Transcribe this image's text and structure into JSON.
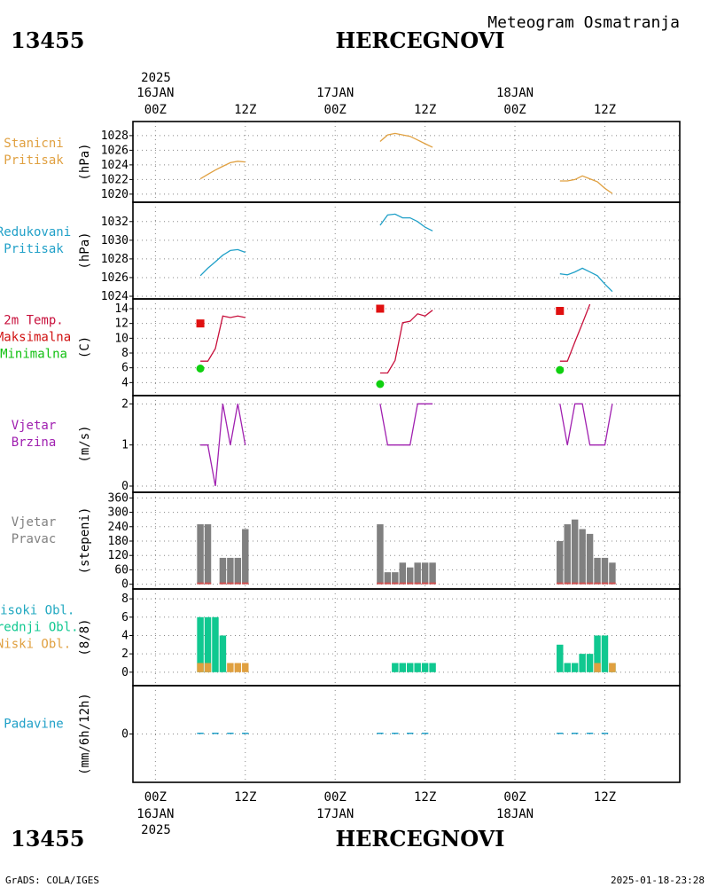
{
  "header": {
    "station_id": "13455",
    "station_name": "HERCEGNOVI",
    "product": "Meteogram Osmatranja"
  },
  "footer": {
    "station_id": "13455",
    "station_name": "HERCEGNOVI",
    "credit": "GrADS: COLA/IGES",
    "timestamp": "2025-01-18-23:28"
  },
  "time_axis": {
    "top_year": "2025",
    "bottom_year": "2025",
    "ticks": [
      {
        "label": "00Z",
        "date": "16JAN",
        "hour": 0
      },
      {
        "label": "12Z",
        "date": "",
        "hour": 12
      },
      {
        "label": "00Z",
        "date": "17JAN",
        "hour": 24
      },
      {
        "label": "12Z",
        "date": "",
        "hour": 36
      },
      {
        "label": "00Z",
        "date": "18JAN",
        "hour": 48
      },
      {
        "label": "12Z",
        "date": "",
        "hour": 60
      }
    ],
    "range_hours": [
      -3,
      70
    ]
  },
  "chart_data": [
    {
      "type": "line",
      "panel": "station_pressure",
      "label_lines": [
        "Stanicni",
        "Pritisak"
      ],
      "ylabel": "(hPa)",
      "ylim": [
        1019.5,
        1029.2
      ],
      "yticks": [
        1020,
        1022,
        1024,
        1026,
        1028
      ],
      "color": "#e0a040",
      "segments": [
        [
          [
            6,
            1022.1
          ],
          [
            7,
            1022.7
          ],
          [
            8,
            1023.3
          ],
          [
            9,
            1023.8
          ],
          [
            10,
            1024.3
          ],
          [
            11,
            1024.5
          ],
          [
            12,
            1024.4
          ]
        ],
        [
          [
            30,
            1027.2
          ],
          [
            31,
            1028.1
          ],
          [
            32,
            1028.3
          ],
          [
            33,
            1028.1
          ],
          [
            34,
            1027.9
          ],
          [
            35,
            1027.4
          ],
          [
            36,
            1026.9
          ],
          [
            37,
            1026.4
          ]
        ],
        [
          [
            54,
            1021.8
          ],
          [
            55,
            1021.8
          ],
          [
            56,
            1022.0
          ],
          [
            57,
            1022.5
          ],
          [
            58,
            1022.1
          ],
          [
            59,
            1021.7
          ],
          [
            60,
            1020.8
          ],
          [
            61,
            1020.1
          ]
        ]
      ]
    },
    {
      "type": "line",
      "panel": "reduced_pressure",
      "label_lines": [
        "Redukovani",
        "Pritisak"
      ],
      "ylabel": "(hPa)",
      "ylim": [
        1024,
        1033.5
      ],
      "yticks": [
        1024,
        1026,
        1028,
        1030,
        1032
      ],
      "color": "#20a0c8",
      "segments": [
        [
          [
            6,
            1026.2
          ],
          [
            7,
            1027.0
          ],
          [
            8,
            1027.7
          ],
          [
            9,
            1028.4
          ],
          [
            10,
            1028.9
          ],
          [
            11,
            1029.0
          ],
          [
            12,
            1028.7
          ]
        ],
        [
          [
            30,
            1031.6
          ],
          [
            31,
            1032.7
          ],
          [
            32,
            1032.8
          ],
          [
            33,
            1032.4
          ],
          [
            34,
            1032.4
          ],
          [
            35,
            1032.0
          ],
          [
            36,
            1031.4
          ],
          [
            37,
            1031.0
          ]
        ],
        [
          [
            54,
            1026.4
          ],
          [
            55,
            1026.3
          ],
          [
            56,
            1026.6
          ],
          [
            57,
            1027.0
          ],
          [
            58,
            1026.6
          ],
          [
            59,
            1026.2
          ],
          [
            60,
            1025.3
          ],
          [
            61,
            1024.5
          ]
        ]
      ]
    },
    {
      "type": "line",
      "panel": "temperature",
      "label_lines": [
        "2m Temp.",
        "Maksimalna",
        "Minimalna"
      ],
      "label_colors": [
        "#c8103c",
        "#d01010",
        "#10c010"
      ],
      "ylabel": "(C)",
      "ylim": [
        3.2,
        14.6
      ],
      "yticks": [
        4,
        6,
        8,
        10,
        12,
        14
      ],
      "color": "#c8103c",
      "segments": [
        [
          [
            6,
            6.9
          ],
          [
            7,
            6.9
          ],
          [
            8,
            8.6
          ],
          [
            9,
            13.0
          ],
          [
            10,
            12.8
          ],
          [
            11,
            13.0
          ],
          [
            12,
            12.8
          ]
        ],
        [
          [
            30,
            5.3
          ],
          [
            31,
            5.3
          ],
          [
            32,
            7.0
          ],
          [
            33,
            12.1
          ],
          [
            34,
            12.3
          ],
          [
            35,
            13.3
          ],
          [
            36,
            13.0
          ],
          [
            37,
            13.8
          ]
        ],
        [
          [
            54,
            6.9
          ],
          [
            55,
            6.9
          ],
          [
            56,
            9.5
          ],
          [
            57,
            12.0
          ],
          [
            58,
            14.6
          ]
        ]
      ],
      "max_points": [
        [
          6,
          12.0
        ],
        [
          30,
          14.0
        ],
        [
          54,
          13.7
        ]
      ],
      "min_points": [
        [
          6,
          5.9
        ],
        [
          30,
          3.8
        ],
        [
          54,
          5.7
        ]
      ],
      "max_color": "#e01010",
      "min_color": "#10d010"
    },
    {
      "type": "line",
      "panel": "wind_speed",
      "label_lines": [
        "Vjetar",
        "Brzina"
      ],
      "ylabel": "(m/s)",
      "ylim": [
        0,
        2.05
      ],
      "yticks": [
        0,
        1,
        2
      ],
      "color": "#a020b0",
      "segments": [
        [
          [
            6,
            1
          ],
          [
            7,
            1
          ],
          [
            8,
            0
          ],
          [
            9,
            2
          ],
          [
            10,
            1
          ],
          [
            11,
            2
          ],
          [
            12,
            1
          ]
        ],
        [
          [
            30,
            2
          ],
          [
            31,
            1
          ],
          [
            32,
            1
          ],
          [
            33,
            1
          ],
          [
            34,
            1
          ],
          [
            35,
            2
          ],
          [
            36,
            2
          ],
          [
            37,
            2
          ]
        ],
        [
          [
            54,
            2
          ],
          [
            55,
            1
          ],
          [
            56,
            2
          ],
          [
            57,
            2
          ],
          [
            58,
            1
          ],
          [
            59,
            1
          ],
          [
            60,
            1
          ],
          [
            61,
            2
          ]
        ]
      ]
    },
    {
      "type": "bar",
      "panel": "wind_direction",
      "label_lines": [
        "Vjetar",
        "Pravac"
      ],
      "ylabel": "(stepeni)",
      "ylim": [
        -5,
        365
      ],
      "yticks": [
        0,
        60,
        120,
        180,
        240,
        300,
        360
      ],
      "color": "#808080",
      "bars": [
        [
          6,
          250
        ],
        [
          7,
          250
        ],
        [
          9,
          110
        ],
        [
          10,
          110
        ],
        [
          11,
          110
        ],
        [
          12,
          230
        ],
        [
          30,
          250
        ],
        [
          31,
          50
        ],
        [
          32,
          50
        ],
        [
          33,
          90
        ],
        [
          34,
          70
        ],
        [
          35,
          90
        ],
        [
          36,
          90
        ],
        [
          37,
          90
        ],
        [
          54,
          180
        ],
        [
          55,
          250
        ],
        [
          56,
          270
        ],
        [
          57,
          230
        ],
        [
          58,
          210
        ],
        [
          59,
          110
        ],
        [
          60,
          110
        ],
        [
          61,
          90
        ]
      ]
    },
    {
      "type": "bar",
      "panel": "clouds",
      "label_lines": [
        "Visoki Obl.",
        "Srednji Obl.",
        "Niski Obl."
      ],
      "label_colors": [
        "#20a8c0",
        "#10c890",
        "#e0a040"
      ],
      "ylabel": "(8/8)",
      "ylim": [
        -0.5,
        8.3
      ],
      "yticks": [
        0,
        2,
        4,
        6,
        8
      ],
      "series": [
        {
          "color": "#10c890",
          "bars": [
            [
              6,
              6
            ],
            [
              7,
              6
            ],
            [
              8,
              6
            ],
            [
              9,
              4
            ],
            [
              32,
              1
            ],
            [
              33,
              1
            ],
            [
              34,
              1
            ],
            [
              35,
              1
            ],
            [
              36,
              1
            ],
            [
              37,
              1
            ],
            [
              54,
              3
            ],
            [
              55,
              1
            ],
            [
              56,
              1
            ],
            [
              57,
              2
            ],
            [
              58,
              2
            ],
            [
              59,
              4
            ],
            [
              60,
              4
            ],
            [
              61,
              1
            ]
          ]
        },
        {
          "color": "#e0a040",
          "bars": [
            [
              6,
              1
            ],
            [
              7,
              1
            ],
            [
              10,
              1
            ],
            [
              11,
              1
            ],
            [
              12,
              1
            ],
            [
              59,
              1
            ],
            [
              61,
              1
            ]
          ]
        }
      ]
    },
    {
      "type": "bar",
      "panel": "precipitation",
      "label_lines": [
        "Padavine"
      ],
      "ylabel": "(mm/6h/12h)",
      "ylim": [
        -0.5,
        0.5
      ],
      "yticks": [
        0
      ],
      "color": "#20a0c8",
      "bars": [
        [
          6,
          0
        ],
        [
          8,
          0
        ],
        [
          10,
          0
        ],
        [
          12,
          0
        ],
        [
          30,
          0
        ],
        [
          32,
          0
        ],
        [
          34,
          0
        ],
        [
          36,
          0
        ],
        [
          54,
          0
        ],
        [
          56,
          0
        ],
        [
          58,
          0
        ],
        [
          60,
          0
        ]
      ]
    }
  ]
}
